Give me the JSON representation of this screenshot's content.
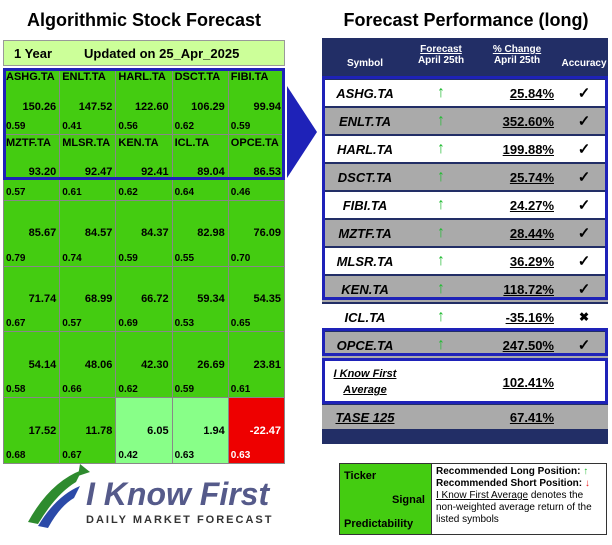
{
  "left": {
    "title": "Algorithmic Stock Forecast",
    "period": "1 Year",
    "updated": "Updated on 25_Apr_2025",
    "cells": [
      {
        "ticker": "ASHG.TA",
        "signal": "150.26",
        "pred": "0.59",
        "color": "green"
      },
      {
        "ticker": "ENLT.TA",
        "signal": "147.52",
        "pred": "0.41",
        "color": "green"
      },
      {
        "ticker": "HARL.TA",
        "signal": "122.60",
        "pred": "0.56",
        "color": "green"
      },
      {
        "ticker": "DSCT.TA",
        "signal": "106.29",
        "pred": "0.62",
        "color": "green"
      },
      {
        "ticker": "FIBI.TA",
        "signal": "99.94",
        "pred": "0.59",
        "color": "green"
      },
      {
        "ticker": "MZTF.TA",
        "signal": "93.20",
        "pred": "0.57",
        "color": "green"
      },
      {
        "ticker": "MLSR.TA",
        "signal": "92.47",
        "pred": "0.61",
        "color": "green"
      },
      {
        "ticker": "KEN.TA",
        "signal": "92.41",
        "pred": "0.62",
        "color": "green"
      },
      {
        "ticker": "ICL.TA",
        "signal": "89.04",
        "pred": "0.64",
        "color": "green"
      },
      {
        "ticker": "OPCE.TA",
        "signal": "86.53",
        "pred": "0.46",
        "color": "green"
      },
      {
        "ticker": "",
        "signal": "85.67",
        "pred": "0.79",
        "color": "green"
      },
      {
        "ticker": "",
        "signal": "84.57",
        "pred": "0.74",
        "color": "green"
      },
      {
        "ticker": "",
        "signal": "84.37",
        "pred": "0.59",
        "color": "green"
      },
      {
        "ticker": "",
        "signal": "82.98",
        "pred": "0.55",
        "color": "green"
      },
      {
        "ticker": "",
        "signal": "76.09",
        "pred": "0.70",
        "color": "green"
      },
      {
        "ticker": "",
        "signal": "71.74",
        "pred": "0.67",
        "color": "green"
      },
      {
        "ticker": "",
        "signal": "68.99",
        "pred": "0.57",
        "color": "green"
      },
      {
        "ticker": "",
        "signal": "66.72",
        "pred": "0.69",
        "color": "green"
      },
      {
        "ticker": "",
        "signal": "59.34",
        "pred": "0.53",
        "color": "green"
      },
      {
        "ticker": "",
        "signal": "54.35",
        "pred": "0.65",
        "color": "green"
      },
      {
        "ticker": "",
        "signal": "54.14",
        "pred": "0.58",
        "color": "green"
      },
      {
        "ticker": "",
        "signal": "48.06",
        "pred": "0.66",
        "color": "green"
      },
      {
        "ticker": "",
        "signal": "42.30",
        "pred": "0.62",
        "color": "green"
      },
      {
        "ticker": "",
        "signal": "26.69",
        "pred": "0.59",
        "color": "green"
      },
      {
        "ticker": "",
        "signal": "23.81",
        "pred": "0.61",
        "color": "green"
      },
      {
        "ticker": "",
        "signal": "17.52",
        "pred": "0.68",
        "color": "green"
      },
      {
        "ticker": "",
        "signal": "11.78",
        "pred": "0.67",
        "color": "green"
      },
      {
        "ticker": "",
        "signal": "6.05",
        "pred": "0.42",
        "color": "light"
      },
      {
        "ticker": "",
        "signal": "1.94",
        "pred": "0.63",
        "color": "light"
      },
      {
        "ticker": "",
        "signal": "-22.47",
        "pred": "0.63",
        "color": "red"
      }
    ]
  },
  "right": {
    "title": "Forecast Performance (long)",
    "headers": {
      "symbol": "Symbol",
      "forecast_top": "Forecast",
      "forecast_bottom": "April 25th",
      "change_top": "% Change",
      "change_bottom": "April 25th",
      "accuracy": "Accuracy"
    },
    "rows": [
      {
        "symbol": "ASHG.TA",
        "arrow": "↑",
        "change": "25.84%",
        "acc": "✓"
      },
      {
        "symbol": "ENLT.TA",
        "arrow": "↑",
        "change": "352.60%",
        "acc": "✓"
      },
      {
        "symbol": "HARL.TA",
        "arrow": "↑",
        "change": "199.88%",
        "acc": "✓"
      },
      {
        "symbol": "DSCT.TA",
        "arrow": "↑",
        "change": "25.74%",
        "acc": "✓"
      },
      {
        "symbol": "FIBI.TA",
        "arrow": "↑",
        "change": "24.27%",
        "acc": "✓"
      },
      {
        "symbol": "MZTF.TA",
        "arrow": "↑",
        "change": "28.44%",
        "acc": "✓"
      },
      {
        "symbol": "MLSR.TA",
        "arrow": "↑",
        "change": "36.29%",
        "acc": "✓"
      },
      {
        "symbol": "KEN.TA",
        "arrow": "↑",
        "change": "118.72%",
        "acc": "✓"
      },
      {
        "symbol": "ICL.TA",
        "arrow": "↑",
        "change": "-35.16%",
        "acc": "✖"
      },
      {
        "symbol": "OPCE.TA",
        "arrow": "↑",
        "change": "247.50%",
        "acc": "✓"
      }
    ],
    "average": {
      "line1": "I Know First",
      "line2": "Average",
      "change": "102.41%"
    },
    "tase": {
      "symbol": "TASE 125",
      "change": "67.41%"
    }
  },
  "logo": {
    "name": "I Know First",
    "tagline": "DAILY MARKET FORECAST"
  },
  "legend": {
    "ticker": "Ticker",
    "signal": "Signal",
    "predictability": "Predictability",
    "long_label": "Recommended Long Position:",
    "long_arrow": "↑",
    "short_label": "Recommended Short Position:",
    "short_arrow": "↓",
    "avg_name": "I Know First Average",
    "avg_desc": " denotes the non-weighted average return of the listed symbols"
  },
  "colors": {
    "accent_blue": "#1e22b8",
    "navy": "#222e66",
    "green": "#44cc11",
    "light_green": "#88ff88",
    "red": "#ee0000",
    "up_arrow": "#22bb33"
  }
}
